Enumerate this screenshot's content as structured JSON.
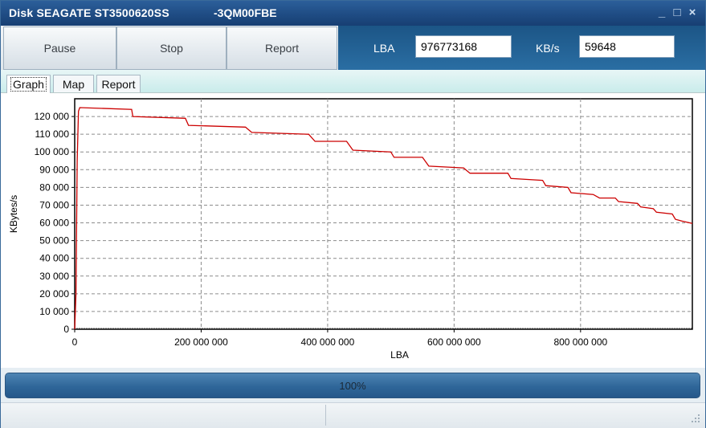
{
  "window": {
    "title": "Disk SEAGATE ST3500620SS",
    "serial": "-3QM00FBE",
    "controls": [
      "_",
      "□",
      "×"
    ]
  },
  "toolbar": {
    "pause_label": "Pause",
    "stop_label": "Stop",
    "report_label": "Report"
  },
  "info": {
    "lba_label": "LBA",
    "lba_value": "976773168",
    "speed_label": "KB/s",
    "speed_value": "59648"
  },
  "tabs": [
    {
      "label": "Graph",
      "active": true
    },
    {
      "label": "Map",
      "active": false
    },
    {
      "label": "Report",
      "active": false
    }
  ],
  "progress": {
    "text": "100%",
    "fraction": 1.0
  },
  "colors": {
    "title_bar": "#1f4c84",
    "info_panel": "#2a6ea3",
    "plot_line": "#cc0000",
    "progress": "#2f6699"
  },
  "chart_data": {
    "type": "line",
    "xlabel": "LBA",
    "ylabel": "KBytes/s",
    "xlim": [
      0,
      976773168
    ],
    "ylim": [
      0,
      130000
    ],
    "x_ticks": [
      0,
      200000000,
      400000000,
      600000000,
      800000000
    ],
    "x_tick_labels": [
      "0",
      "200 000 000",
      "400 000 000",
      "600 000 000",
      "800 000 000"
    ],
    "y_ticks": [
      0,
      10000,
      20000,
      30000,
      40000,
      50000,
      60000,
      70000,
      80000,
      90000,
      100000,
      110000,
      120000
    ],
    "y_tick_labels": [
      "0",
      "10 000",
      "20 000",
      "30 000",
      "40 000",
      "50 000",
      "60 000",
      "70 000",
      "80 000",
      "90 000",
      "100 000",
      "110 000",
      "120 000"
    ],
    "grid": true,
    "series": [
      {
        "x": [
          0,
          2000000,
          4000000,
          6000000,
          8000000,
          90000000,
          92000000,
          175000000,
          180000000,
          270000000,
          280000000,
          370000000,
          380000000,
          430000000,
          440000000,
          500000000,
          505000000,
          550000000,
          560000000,
          615000000,
          625000000,
          685000000,
          690000000,
          740000000,
          745000000,
          780000000,
          785000000,
          820000000,
          830000000,
          855000000,
          860000000,
          890000000,
          895000000,
          915000000,
          920000000,
          945000000,
          950000000,
          960000000,
          976773168
        ],
        "y": [
          0,
          20000,
          95000,
          123000,
          125000,
          124000,
          120000,
          119000,
          115000,
          114000,
          111000,
          110000,
          106000,
          106000,
          101000,
          100000,
          97000,
          97000,
          92000,
          91000,
          88000,
          88000,
          85000,
          84000,
          81000,
          80000,
          77000,
          76000,
          74000,
          74000,
          72000,
          71000,
          69000,
          68000,
          66000,
          65000,
          62000,
          61000,
          59648
        ]
      }
    ]
  }
}
